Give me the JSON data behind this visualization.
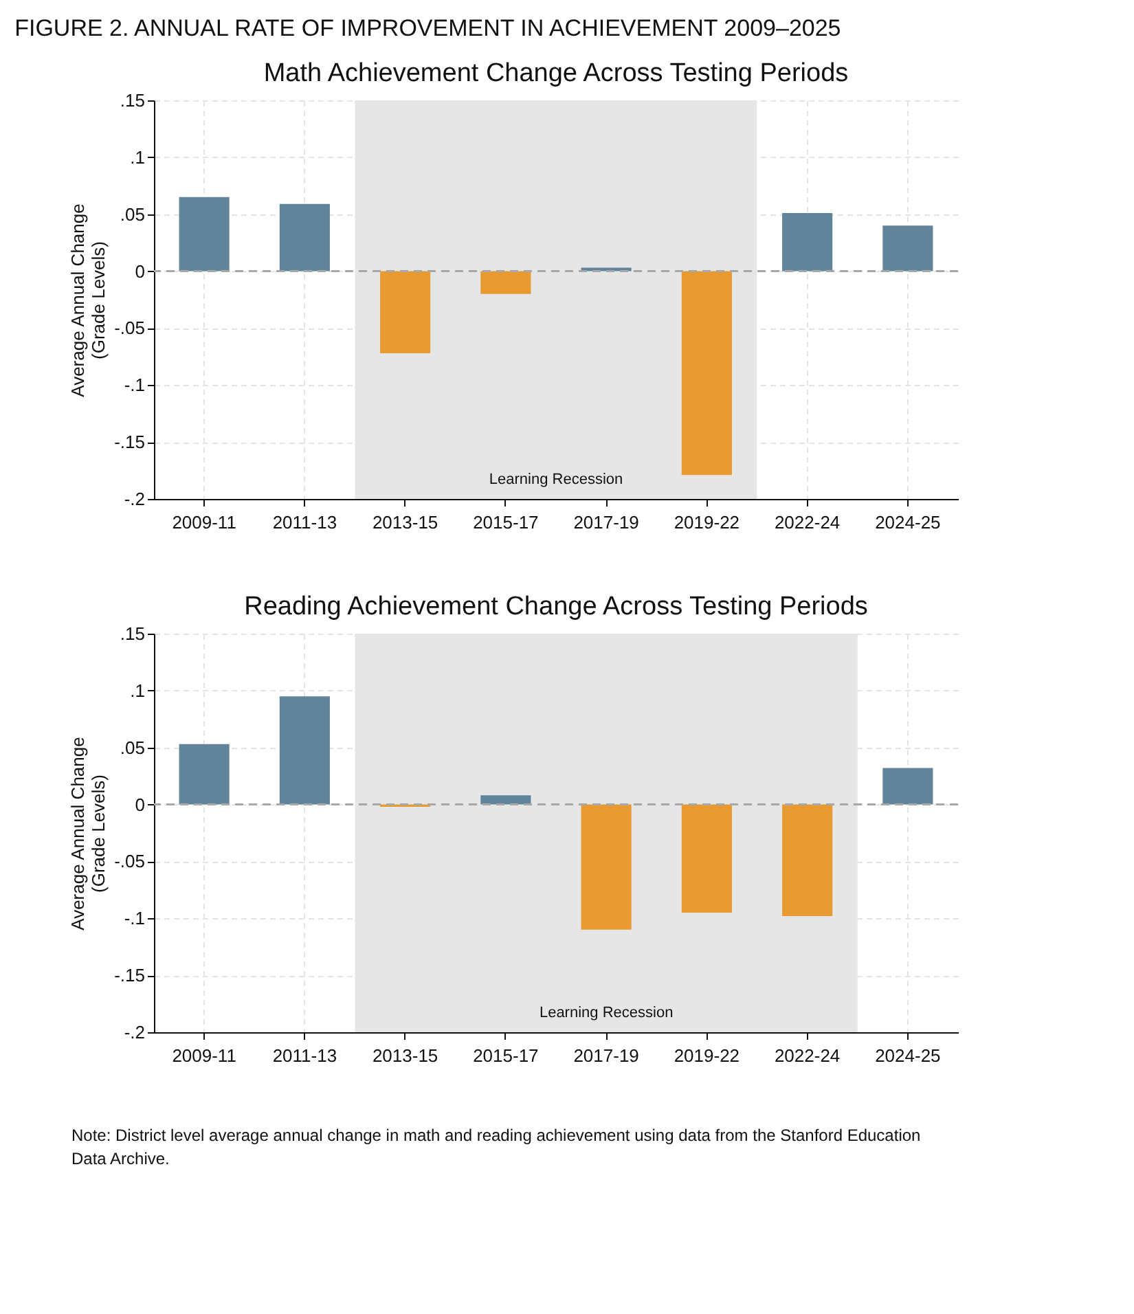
{
  "chart_data": [
    {
      "type": "bar",
      "title": "Math Achievement Change Across Testing Periods",
      "ylabel": "Average Annual Change\n(Grade Levels)",
      "annotations": [
        "FIGURE 2. ANNUAL RATE OF IMPROVEMENT IN ACHIEVEMENT 2009–2025"
      ],
      "categories": [
        "2009-11",
        "2011-13",
        "2013-15",
        "2015-17",
        "2017-19",
        "2019-22",
        "2022-24",
        "2024-25"
      ],
      "values": [
        0.065,
        0.059,
        -0.072,
        -0.02,
        0.003,
        -0.179,
        0.051,
        0.04
      ],
      "colors": [
        "#62849b",
        "#62849b",
        "#e89a33",
        "#e89a33",
        "#62849b",
        "#e89a33",
        "#62849b",
        "#62849b"
      ],
      "ylim": [
        -0.2,
        0.15
      ],
      "yticks": [
        {
          "value": -0.2,
          "label": "-.2"
        },
        {
          "value": -0.15,
          "label": "-.15"
        },
        {
          "value": -0.1,
          "label": "-.1"
        },
        {
          "value": -0.05,
          "label": "-.05"
        },
        {
          "value": 0,
          "label": "0"
        },
        {
          "value": 0.05,
          "label": ".05"
        },
        {
          "value": 0.1,
          "label": ".1"
        },
        {
          "value": 0.15,
          "label": ".15"
        }
      ],
      "ref_lines": [
        {
          "axis": "y",
          "value": 0,
          "color": "#a8a8a8",
          "line_style": "dashed"
        }
      ],
      "bands": [
        {
          "axis": "x",
          "from": "2013-15",
          "to": "2019-22",
          "label": "Learning Recession",
          "color": "#e6e6e6"
        }
      ],
      "grid": true
    },
    {
      "type": "bar",
      "title": "Reading Achievement Change Across Testing Periods",
      "ylabel": "Average Annual Change\n(Grade Levels)",
      "annotations": [
        "Note:  District level average annual change in math and reading achievement using data from the Stanford Education Data Archive."
      ],
      "categories": [
        "2009-11",
        "2011-13",
        "2013-15",
        "2015-17",
        "2017-19",
        "2019-22",
        "2022-24",
        "2024-25"
      ],
      "values": [
        0.053,
        0.095,
        -0.002,
        0.008,
        -0.11,
        -0.095,
        -0.098,
        0.032
      ],
      "colors": [
        "#62849b",
        "#62849b",
        "#e89a33",
        "#62849b",
        "#e89a33",
        "#e89a33",
        "#e89a33",
        "#62849b"
      ],
      "ylim": [
        -0.2,
        0.15
      ],
      "yticks": [
        {
          "value": -0.2,
          "label": "-.2"
        },
        {
          "value": -0.15,
          "label": "-.15"
        },
        {
          "value": -0.1,
          "label": "-.1"
        },
        {
          "value": -0.05,
          "label": "-.05"
        },
        {
          "value": 0,
          "label": "0"
        },
        {
          "value": 0.05,
          "label": ".05"
        },
        {
          "value": 0.1,
          "label": ".1"
        },
        {
          "value": 0.15,
          "label": ".15"
        }
      ],
      "ref_lines": [
        {
          "axis": "y",
          "value": 0,
          "color": "#a8a8a8",
          "line_style": "dashed"
        }
      ],
      "bands": [
        {
          "axis": "x",
          "from": "2013-15",
          "to": "2022-24",
          "label": "Learning Recession",
          "color": "#e6e6e6"
        }
      ],
      "grid": true
    }
  ]
}
